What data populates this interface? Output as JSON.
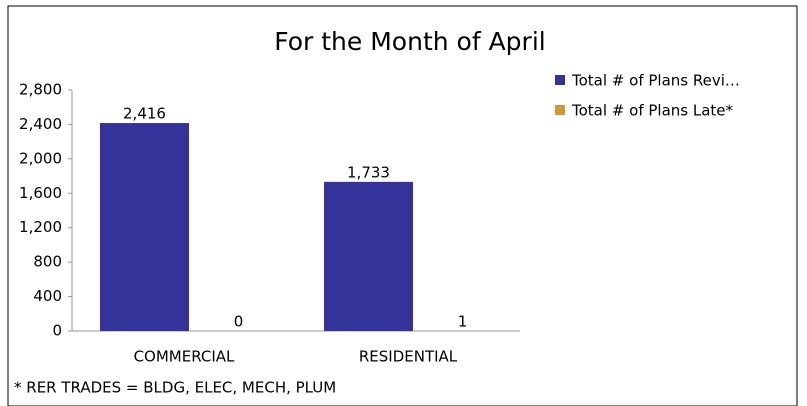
{
  "chart_data": {
    "type": "bar",
    "title": "For the Month of April",
    "categories": [
      "COMMERCIAL",
      "RESIDENTIAL"
    ],
    "series": [
      {
        "name": "Total # of Plans Revi…",
        "color": "#333399",
        "values": [
          2416,
          1733
        ],
        "value_labels": [
          "2,416",
          "1,733"
        ]
      },
      {
        "name": "Total # of Plans Late*",
        "color": "#cc9933",
        "values": [
          0,
          1
        ],
        "value_labels": [
          "0",
          "1"
        ]
      }
    ],
    "ylim": [
      0,
      2800
    ],
    "yticks": [
      0,
      400,
      800,
      {
        "value": 1200,
        "label": "1,200"
      },
      {
        "value": 1600,
        "label": "1,600"
      },
      {
        "value": 2000,
        "label": "2,000"
      },
      {
        "value": 2400,
        "label": "2,400"
      },
      {
        "value": 2800,
        "label": "2,800"
      }
    ],
    "grid": false,
    "legend": "right",
    "footnote": "* RER TRADES = BLDG, ELEC, MECH, PLUM"
  }
}
